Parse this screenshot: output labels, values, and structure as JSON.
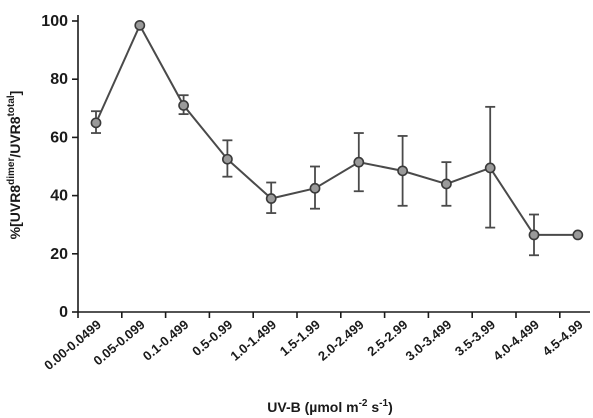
{
  "chart_data": {
    "type": "line",
    "title": "",
    "xlabel": "UV-B (µmol m⁻² s⁻¹)",
    "xlabel_parts": {
      "main": "UV-B (µmol m",
      "sup1": "-2",
      "mid": " s",
      "sup2": "-1",
      "end": ")"
    },
    "ylabel": "%[UVR8dimer/UVR8total]",
    "ylabel_parts": {
      "a": "%[UVR8",
      "sup1": "dimer",
      "b": "/UVR8",
      "sup2": "total",
      "c": "]"
    },
    "ylim": [
      0,
      100
    ],
    "yticks": [
      "0",
      "20",
      "40",
      "60",
      "80",
      "100"
    ],
    "categories": [
      "0.00-0.0499",
      "0.05-0.099",
      "0.1-0.499",
      "0.5-0.99",
      "1.0-1.499",
      "1.5-1.99",
      "2.0-2.499",
      "2.5-2.99",
      "3.0-3.499",
      "3.5-3.99",
      "4.0-4.499",
      "4.5-4.99"
    ],
    "series": [
      {
        "values": [
          65,
          98.5,
          71,
          52.5,
          39,
          42.5,
          51.5,
          48.5,
          44,
          49.5,
          26.5,
          26.5
        ],
        "error_low": [
          61.5,
          98.5,
          68,
          46.5,
          34,
          35.5,
          41.5,
          36.5,
          36.5,
          29,
          19.5,
          26.5
        ],
        "error_high": [
          69,
          98.5,
          74.5,
          59,
          44.5,
          50,
          61.5,
          60.5,
          51.5,
          70.5,
          33.5,
          26.5
        ]
      }
    ],
    "colors": {
      "line": "#4a4a4a",
      "marker_fill": "#9a9a9a",
      "marker_stroke": "#3a3a3a",
      "axis": "#1a1a1a"
    }
  }
}
